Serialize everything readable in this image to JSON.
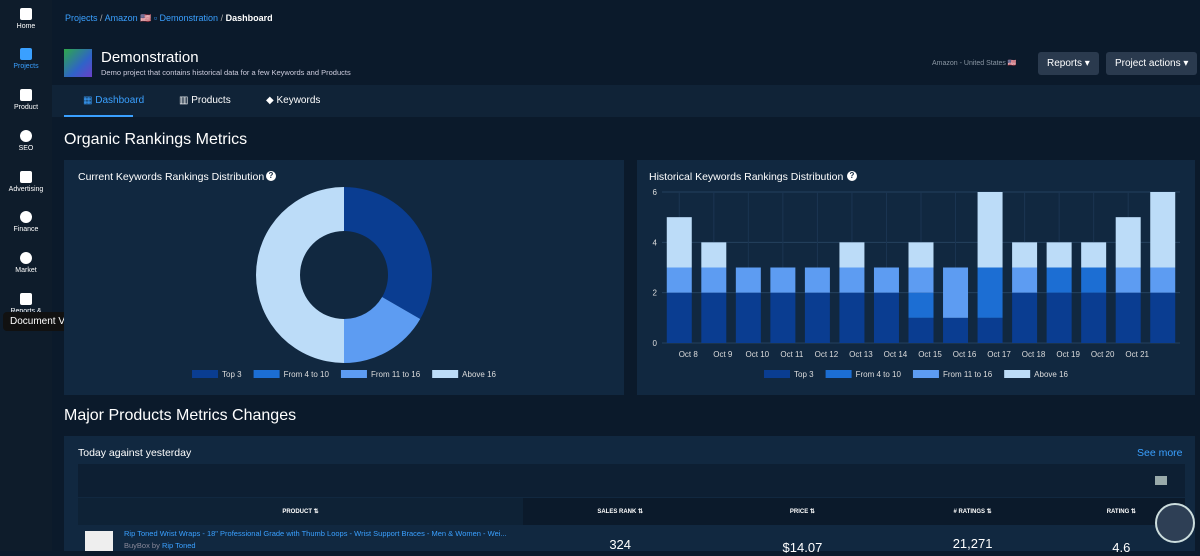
{
  "sidebar": {
    "items": [
      "Home",
      "Projects",
      "Product",
      "SEO",
      "Advertising",
      "Finance",
      "Market",
      "Reports &"
    ],
    "tooltip": "Document Viewer"
  },
  "breadcrumb": [
    "Projects",
    "Amazon 🇺🇸",
    "Demonstration",
    "Dashboard"
  ],
  "header": {
    "title": "Demonstration",
    "subtitle": "Demo project that contains historical data for a few Keywords and Products",
    "marketplace": "Amazon - United States 🇺🇸",
    "buttons": [
      "Reports",
      "Project actions"
    ]
  },
  "tabs": [
    "Dashboard",
    "Products",
    "Keywords"
  ],
  "sections": [
    "Organic Rankings Metrics",
    "Major Products Metrics Changes"
  ],
  "chart_data": [
    {
      "type": "pie",
      "donut": true,
      "title": "Current Keywords Rankings Distribution",
      "categories": [
        "Top 3",
        "From 4 to 10",
        "From 11 to 16",
        "Above 16"
      ],
      "values": [
        2,
        0,
        1,
        3
      ],
      "colors": [
        "#0a3d91",
        "#1c6ed3",
        "#5d9cf2",
        "#bcdcf8"
      ],
      "legend": "bottom"
    },
    {
      "type": "bar",
      "stacked": true,
      "title": "Historical Keywords Rankings Distribution",
      "categories": [
        "Oct 8",
        "Oct 9",
        "Oct 10",
        "Oct 11",
        "Oct 12",
        "Oct 13",
        "Oct 14",
        "Oct 15",
        "Oct 16",
        "Oct 17",
        "Oct 18",
        "Oct 19",
        "Oct 20",
        "Oct 21",
        null
      ],
      "series": [
        {
          "name": "Top 3",
          "color": "#0a3d91",
          "values": [
            2,
            2,
            2,
            2,
            2,
            2,
            2,
            1,
            1,
            1,
            2,
            2,
            2,
            2,
            2
          ]
        },
        {
          "name": "From 4 to 10",
          "color": "#1c6ed3",
          "values": [
            0,
            0,
            0,
            0,
            0,
            0,
            0,
            1,
            0,
            2,
            0,
            1,
            1,
            0,
            0
          ]
        },
        {
          "name": "From 11 to 16",
          "color": "#5d9cf2",
          "values": [
            1,
            1,
            1,
            1,
            1,
            1,
            1,
            1,
            2,
            0,
            1,
            0,
            0,
            1,
            1
          ]
        },
        {
          "name": "Above 16",
          "color": "#bcdcf8",
          "values": [
            2,
            1,
            0,
            0,
            0,
            1,
            0,
            1,
            0,
            3,
            1,
            1,
            1,
            2,
            3
          ]
        }
      ],
      "ylim": [
        0,
        6
      ],
      "yticks": [
        0,
        2,
        4,
        6
      ],
      "grid": true,
      "legend": "bottom"
    }
  ],
  "products": {
    "title": "Today against yesterday",
    "see_more": "See more",
    "columns": [
      "PRODUCT ⇅",
      "SALES RANK ⇅",
      "PRICE ⇅",
      "# RATINGS ⇅",
      "RATING ⇅"
    ],
    "rows": [
      {
        "product": "Rip Toned Wrist Wraps - 18\" Professional Grade with Thumb Loops - Wrist Support Braces - Men & Women - Wei...",
        "buybox": "BuyBox by",
        "seller": "Rip Toned",
        "sales_rank": "324",
        "price": "$14.07",
        "ratings": "21,271",
        "rating": "4.6"
      }
    ]
  }
}
